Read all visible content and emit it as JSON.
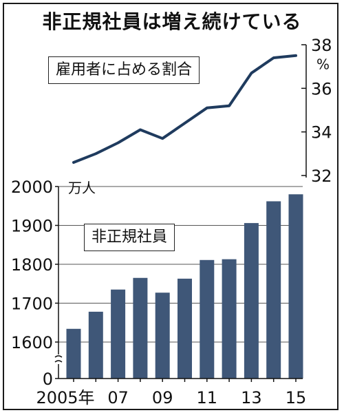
{
  "title": "非正規社員は増え続けている",
  "chart_data": [
    {
      "type": "line",
      "label": "雇用者に占める割合",
      "y_unit": "%",
      "ylim": [
        32,
        38
      ],
      "yticks": [
        "32",
        "34",
        "36",
        "38"
      ],
      "x": [
        2005,
        2006,
        2007,
        2008,
        2009,
        2010,
        2011,
        2012,
        2013,
        2014,
        2015
      ],
      "values": [
        32.6,
        33.0,
        33.5,
        34.1,
        33.7,
        34.4,
        35.1,
        35.2,
        36.7,
        37.4,
        37.5
      ],
      "color": "#1f3b5e"
    },
    {
      "type": "bar",
      "label": "非正規社員",
      "y_unit": "万人",
      "ylim": [
        1550,
        2000
      ],
      "axis_break": true,
      "yticks": [
        "0",
        "1600",
        "1700",
        "1800",
        "1900",
        "2000"
      ],
      "x": [
        2005,
        2006,
        2007,
        2008,
        2009,
        2010,
        2011,
        2012,
        2013,
        2014,
        2015
      ],
      "values": [
        1634,
        1678,
        1735,
        1765,
        1727,
        1763,
        1811,
        1813,
        1906,
        1962,
        1980
      ],
      "xtick_labels": [
        "2005年",
        "07",
        "09",
        "11",
        "13",
        "15"
      ],
      "color": "#3f5778"
    }
  ]
}
